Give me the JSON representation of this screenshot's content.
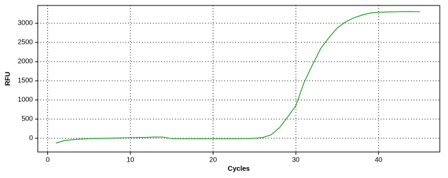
{
  "chart_data": {
    "type": "line",
    "x_label": "Cycles",
    "y_label": "RFU",
    "x": [
      1,
      2,
      3,
      4,
      5,
      6,
      7,
      8,
      9,
      10,
      11,
      12,
      13,
      14,
      15,
      16,
      17,
      18,
      19,
      20,
      21,
      22,
      23,
      24,
      25,
      26,
      27,
      28,
      29,
      30,
      31,
      32,
      33,
      34,
      35,
      36,
      37,
      38,
      39,
      40,
      41,
      42,
      43,
      44,
      45
    ],
    "series": [
      {
        "name": "RFU",
        "color": "#1e9a1e",
        "values": [
          -125,
          -60,
          -35,
          -20,
          -10,
          -5,
          0,
          5,
          10,
          15,
          20,
          25,
          35,
          30,
          -10,
          -12,
          -12,
          -12,
          -12,
          -12,
          -12,
          -12,
          -12,
          -10,
          0,
          20,
          90,
          270,
          550,
          850,
          1460,
          1910,
          2340,
          2625,
          2875,
          3035,
          3140,
          3214,
          3268,
          3285,
          3295,
          3300,
          3305,
          3305,
          3300
        ]
      }
    ],
    "xlim": [
      -1.2,
      47.4
    ],
    "ylim": [
      -357,
      3464
    ],
    "xticks": [
      0,
      10,
      20,
      30,
      40
    ],
    "yticks": [
      0,
      500,
      1000,
      1500,
      2000,
      2500,
      3000
    ],
    "grid": true
  }
}
